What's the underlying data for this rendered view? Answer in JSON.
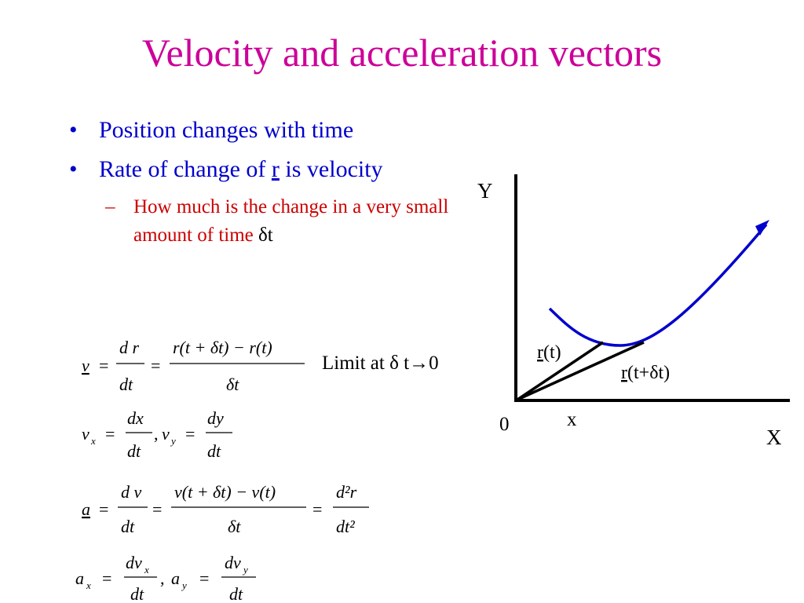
{
  "slide": {
    "title": "Velocity and acceleration vectors",
    "bullets": [
      {
        "text": "Position changes with time"
      },
      {
        "before": "Rate of change of ",
        "underlined": "r",
        "after": " is velocity"
      }
    ],
    "sub_bullet": {
      "text": "How much is the change in a very small amount of time ",
      "delta": "δ",
      "tail": "t"
    }
  },
  "equations": {
    "eq1": {
      "lhs": "v",
      "num1": "d r",
      "den1": "dt",
      "num2": "r(t + δt) − r(t)",
      "den2": "δt"
    },
    "eq2": {
      "vx_num": "dx",
      "vx_den": "dt",
      "vy_num": "dy",
      "vy_den": "dt"
    },
    "eq3": {
      "lhs": "a",
      "num1": "d v",
      "den1": "dt",
      "num2": "v(t + δt) − v(t)",
      "den2": "δt",
      "num3": "d²r",
      "den3": "dt²"
    },
    "eq4": {
      "ax_num": "dvx",
      "ax_den": "dt",
      "ay_num": "dvy",
      "ay_den": "dt"
    },
    "limit_text": "Limit at δ t→0"
  },
  "diagram": {
    "y_label": "Y",
    "x_label": "X",
    "origin_label": "0",
    "x_small_label": "x",
    "r_t_label": "(t)",
    "r_t_plus_label": "(t+δt)",
    "r_symbol": "r",
    "colors": {
      "curve": "#0000CC",
      "axes": "#000000"
    }
  },
  "colors": {
    "title": "#CC0099",
    "bullet": "#0000CC",
    "sub_bullet": "#CC0000"
  }
}
